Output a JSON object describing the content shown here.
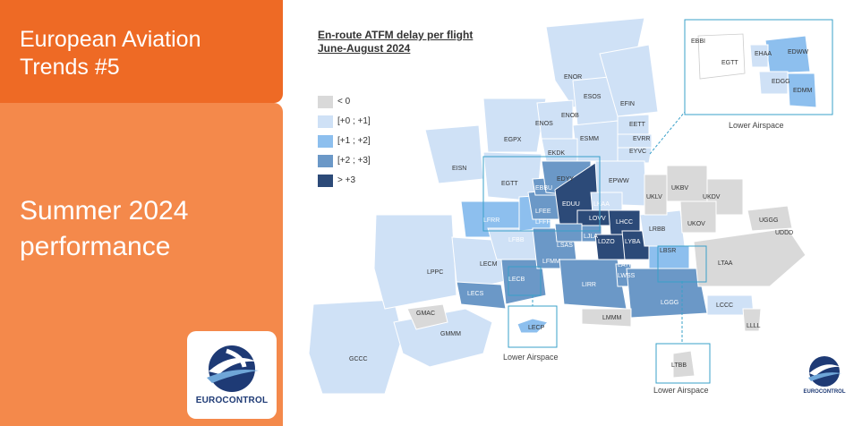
{
  "panel": {
    "title": "European Aviation Trends #5",
    "subtitle": "Summer 2024 performance",
    "logo_text": "EUROCONTROL",
    "colors": {
      "title_bg": "#ee6a25",
      "body_bg": "#f4894b"
    }
  },
  "map": {
    "title_line1": "En-route ATFM delay per flight",
    "title_line2": "June-August 2024",
    "legend": [
      {
        "label": "< 0",
        "color": "#d9d9d9"
      },
      {
        "label": "[+0 ; +1]",
        "color": "#cfe1f6"
      },
      {
        "label": "[+1 ; +2]",
        "color": "#8dbfee"
      },
      {
        "label": "[+2 ; +3]",
        "color": "#6b98c7"
      },
      {
        "label": "> +3",
        "color": "#2c4a78"
      }
    ],
    "inset_caption": "Lower Airspace",
    "corner_logo_text": "EUROCONTROL",
    "region_codes": [
      "ENOR",
      "ESOS",
      "EFIN",
      "ENOS",
      "ENOB",
      "ESMM",
      "EETT",
      "EVRR",
      "EYVC",
      "EGPX",
      "EKDK",
      "EISN",
      "EGTT",
      "EDYY",
      "EPWW",
      "UKLV",
      "UKBV",
      "UKDV",
      "EBBU",
      "LFFF",
      "EDUU",
      "LKAA",
      "LFRR",
      "LFEE",
      "LOVV",
      "LHCC",
      "LRBB",
      "UKOV",
      "UGGG",
      "UDDD",
      "LFBB",
      "LFMM",
      "LSAS",
      "LJLA",
      "LDZO",
      "LYBA",
      "LBSR",
      "LTAA",
      "LPPC",
      "LECM",
      "LECB",
      "LIRR",
      "LWSS",
      "LATI",
      "LGGG",
      "LCCC",
      "LLLL",
      "LECS",
      "GMAC",
      "GMMM",
      "GCCC",
      "LMMM",
      "EBBI",
      "EGTT",
      "EHAA",
      "EDWW",
      "EDGG",
      "EDMM",
      "LECP",
      "LTBB"
    ]
  }
}
